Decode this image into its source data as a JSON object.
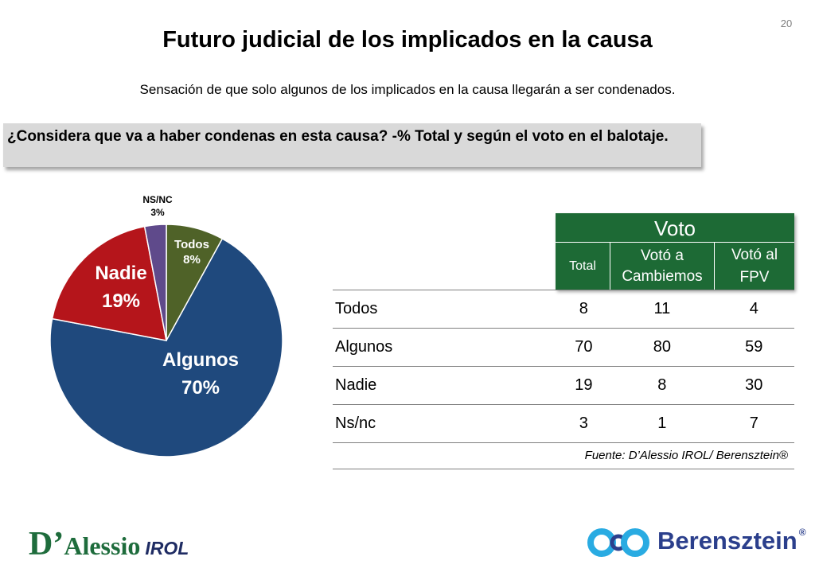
{
  "page_number": "20",
  "title": "Futuro judicial de los implicados en la causa",
  "subtitle": "Sensación de que solo algunos de los implicados en la causa llegarán a ser condenados.",
  "question": "¿Considera que va a haber condenas en esta causa? -% Total y según el voto en el balotaje.",
  "chart_data": {
    "type": "pie",
    "title": "",
    "slices": [
      {
        "label": "Todos",
        "value": 8,
        "display": "8%",
        "color": "#4f6228",
        "label_color": "#ffffff"
      },
      {
        "label": "Algunos",
        "value": 70,
        "display": "70%",
        "color": "#1f497d",
        "label_color": "#ffffff"
      },
      {
        "label": "Nadie",
        "value": 19,
        "display": "19%",
        "color": "#b5151b",
        "label_color": "#ffffff"
      },
      {
        "label": "NS/NC",
        "value": 3,
        "display": "3%",
        "color": "#5f4a8b",
        "label_color": "#000000"
      }
    ]
  },
  "table": {
    "group_header": "Voto",
    "columns": [
      "Total",
      "Votó a Cambiemos",
      "Votó al FPV"
    ],
    "rows": [
      {
        "label": "Todos",
        "values": [
          "8",
          "11",
          "4"
        ]
      },
      {
        "label": "Algunos",
        "values": [
          "70",
          "80",
          "59"
        ]
      },
      {
        "label": "Nadie",
        "values": [
          "19",
          "8",
          "30"
        ]
      },
      {
        "label": "Ns/nc",
        "values": [
          "3",
          "1",
          "7"
        ]
      }
    ],
    "source": "Fuente: D’Alessio IROL/ Berensztein®",
    "header_color": "#1d6a35"
  },
  "logos": {
    "dalessio": {
      "d": "D’",
      "name": "Alessio",
      "irol": "IROL"
    },
    "berensztein": {
      "name": "Berensztein",
      "mark": "®"
    }
  }
}
